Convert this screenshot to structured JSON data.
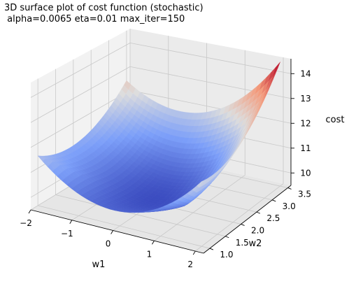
{
  "chart_data": {
    "type": "surface3d",
    "title": "3D surface plot of cost function (stochastic)",
    "subtitle": " alpha=0.0065 eta=0.01 max_iter=150",
    "xlabel": "w1",
    "ylabel": "w2",
    "zlabel": "cost",
    "xlim": [
      -2,
      2.2
    ],
    "ylim": [
      0.8,
      3.6
    ],
    "zlim": [
      9.5,
      14.6
    ],
    "x_ticks": [
      "−2",
      "−1",
      "0",
      "1",
      "2"
    ],
    "y_ticks": [
      "1.0",
      "1.5",
      "2.0",
      "2.5",
      "3.0",
      "3.5"
    ],
    "z_ticks": [
      "10",
      "11",
      "12",
      "13",
      "14"
    ],
    "colormap": "coolwarm",
    "grid": true,
    "surface": {
      "x_range": [
        -2,
        2
      ],
      "y_range": [
        1.0,
        3.5
      ],
      "corner_values": [
        {
          "w1": -2,
          "w2": 1.0,
          "cost": 11.5
        },
        {
          "w1": 2,
          "w2": 1.0,
          "cost": 12.0
        },
        {
          "w1": -2,
          "w2": 3.5,
          "cost": 12.5
        },
        {
          "w1": 2,
          "w2": 3.5,
          "cost": 14.5
        }
      ],
      "minimum": {
        "w1": 0.2,
        "w2": 1.8,
        "cost": 9.7
      }
    }
  }
}
